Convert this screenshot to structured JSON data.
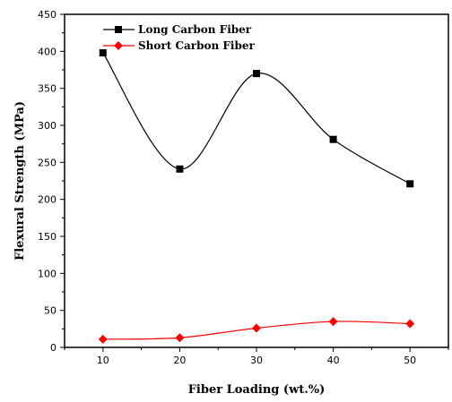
{
  "chart_data": {
    "type": "line",
    "xlabel": "Fiber Loading (wt.%)",
    "ylabel": "Flexural Strength (MPa)",
    "x": [
      10,
      20,
      30,
      40,
      50
    ],
    "xlim": [
      5,
      55
    ],
    "ylim": [
      0,
      450
    ],
    "xticks": [
      10,
      20,
      30,
      40,
      50
    ],
    "yticks": [
      0,
      50,
      100,
      150,
      200,
      250,
      300,
      350,
      400,
      450
    ],
    "grid": false,
    "legend_position": "top-left",
    "series": [
      {
        "name": "Long Carbon Fiber",
        "values": [
          398,
          241,
          370,
          281,
          221
        ],
        "color": "#000000",
        "marker": "square"
      },
      {
        "name": "Short Carbon Fiber",
        "values": [
          11,
          13,
          26,
          35,
          32
        ],
        "color": "#ff0000",
        "marker": "diamond"
      }
    ]
  }
}
